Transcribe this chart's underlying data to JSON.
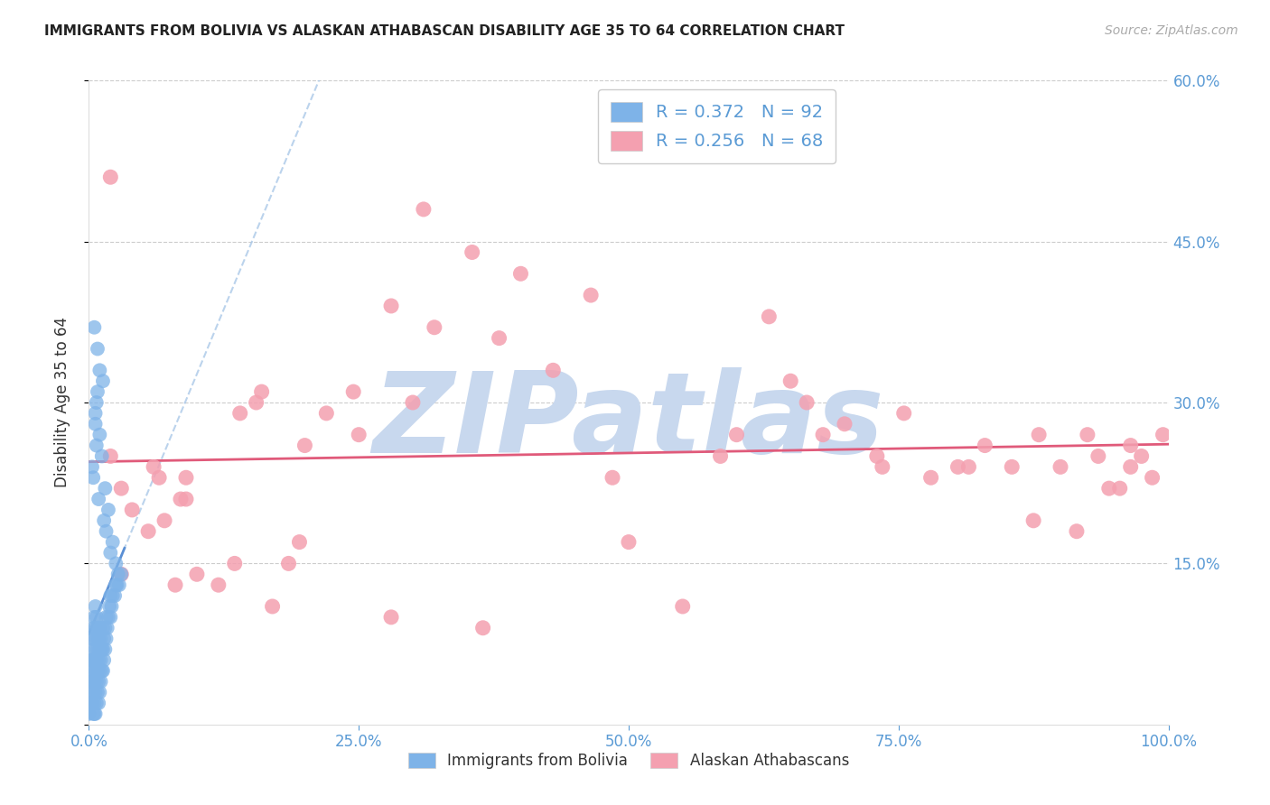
{
  "title": "IMMIGRANTS FROM BOLIVIA VS ALASKAN ATHABASCAN DISABILITY AGE 35 TO 64 CORRELATION CHART",
  "source": "Source: ZipAtlas.com",
  "ylabel": "Disability Age 35 to 64",
  "xlim": [
    0.0,
    1.0
  ],
  "ylim": [
    0.0,
    0.6
  ],
  "yticks": [
    0.0,
    0.15,
    0.3,
    0.45,
    0.6
  ],
  "ytick_labels": [
    "",
    "15.0%",
    "30.0%",
    "45.0%",
    "60.0%"
  ],
  "xticks": [
    0.0,
    0.25,
    0.5,
    0.75,
    1.0
  ],
  "xtick_labels": [
    "0.0%",
    "25.0%",
    "50.0%",
    "75.0%",
    "100.0%"
  ],
  "blue_color": "#7eb3e8",
  "pink_color": "#f4a0b0",
  "blue_reg_color": "#5a8fd4",
  "blue_dash_color": "#aac8e8",
  "pink_reg_color": "#e05a7a",
  "tick_color": "#5b9bd5",
  "watermark_color": "#c8d8ee",
  "watermark_text": "ZIPatlas",
  "legend_R_blue": "R = 0.372",
  "legend_N_blue": "N = 92",
  "legend_R_pink": "R = 0.256",
  "legend_N_pink": "N = 68",
  "legend_blue_label": "Immigrants from Bolivia",
  "legend_pink_label": "Alaskan Athabascans",
  "blue_N": 92,
  "pink_N": 68,
  "background_color": "#ffffff",
  "grid_color": "#cccccc",
  "blue_x_dense": [
    0.0,
    0.001,
    0.001,
    0.002,
    0.002,
    0.002,
    0.003,
    0.003,
    0.003,
    0.003,
    0.004,
    0.004,
    0.004,
    0.004,
    0.004,
    0.005,
    0.005,
    0.005,
    0.005,
    0.005,
    0.005,
    0.006,
    0.006,
    0.006,
    0.006,
    0.006,
    0.006,
    0.007,
    0.007,
    0.007,
    0.007,
    0.007,
    0.008,
    0.008,
    0.008,
    0.008,
    0.009,
    0.009,
    0.009,
    0.009,
    0.01,
    0.01,
    0.01,
    0.01,
    0.011,
    0.011,
    0.011,
    0.012,
    0.012,
    0.013,
    0.013,
    0.013,
    0.014,
    0.014,
    0.015,
    0.015,
    0.016,
    0.016,
    0.017,
    0.018,
    0.019,
    0.02,
    0.02,
    0.021,
    0.022,
    0.024,
    0.025,
    0.026,
    0.027,
    0.028,
    0.03
  ],
  "blue_y_dense": [
    0.01,
    0.02,
    0.03,
    0.04,
    0.05,
    0.06,
    0.02,
    0.04,
    0.06,
    0.08,
    0.01,
    0.03,
    0.05,
    0.07,
    0.09,
    0.01,
    0.02,
    0.04,
    0.06,
    0.08,
    0.1,
    0.01,
    0.03,
    0.05,
    0.07,
    0.09,
    0.11,
    0.02,
    0.04,
    0.06,
    0.08,
    0.1,
    0.03,
    0.05,
    0.07,
    0.09,
    0.02,
    0.04,
    0.06,
    0.08,
    0.03,
    0.05,
    0.07,
    0.09,
    0.04,
    0.06,
    0.08,
    0.05,
    0.07,
    0.05,
    0.07,
    0.09,
    0.06,
    0.08,
    0.07,
    0.09,
    0.08,
    0.1,
    0.09,
    0.1,
    0.11,
    0.1,
    0.12,
    0.11,
    0.12,
    0.12,
    0.13,
    0.13,
    0.14,
    0.13,
    0.14
  ],
  "blue_x_outliers": [
    0.005,
    0.007,
    0.008,
    0.01,
    0.012,
    0.015,
    0.018,
    0.022,
    0.01,
    0.006,
    0.003,
    0.007,
    0.004,
    0.009,
    0.014,
    0.02,
    0.006,
    0.008,
    0.016,
    0.025,
    0.013
  ],
  "blue_y_outliers": [
    0.37,
    0.3,
    0.35,
    0.27,
    0.25,
    0.22,
    0.2,
    0.17,
    0.33,
    0.28,
    0.24,
    0.26,
    0.23,
    0.21,
    0.19,
    0.16,
    0.29,
    0.31,
    0.18,
    0.15,
    0.32
  ],
  "pink_x": [
    0.02,
    0.03,
    0.04,
    0.055,
    0.06,
    0.07,
    0.085,
    0.09,
    0.1,
    0.12,
    0.14,
    0.155,
    0.16,
    0.17,
    0.185,
    0.2,
    0.22,
    0.245,
    0.25,
    0.28,
    0.3,
    0.32,
    0.355,
    0.38,
    0.4,
    0.43,
    0.465,
    0.5,
    0.55,
    0.6,
    0.65,
    0.68,
    0.7,
    0.73,
    0.755,
    0.78,
    0.805,
    0.83,
    0.855,
    0.88,
    0.9,
    0.925,
    0.935,
    0.955,
    0.965,
    0.975,
    0.985,
    0.995,
    0.03,
    0.065,
    0.09,
    0.135,
    0.195,
    0.28,
    0.365,
    0.485,
    0.585,
    0.665,
    0.735,
    0.815,
    0.875,
    0.915,
    0.945,
    0.965,
    0.02,
    0.08,
    0.31,
    0.63
  ],
  "pink_y": [
    0.25,
    0.22,
    0.2,
    0.18,
    0.24,
    0.19,
    0.21,
    0.23,
    0.14,
    0.13,
    0.29,
    0.3,
    0.31,
    0.11,
    0.15,
    0.26,
    0.29,
    0.31,
    0.27,
    0.39,
    0.3,
    0.37,
    0.44,
    0.36,
    0.42,
    0.33,
    0.4,
    0.17,
    0.11,
    0.27,
    0.32,
    0.27,
    0.28,
    0.25,
    0.29,
    0.23,
    0.24,
    0.26,
    0.24,
    0.27,
    0.24,
    0.27,
    0.25,
    0.22,
    0.24,
    0.25,
    0.23,
    0.27,
    0.14,
    0.23,
    0.21,
    0.15,
    0.17,
    0.1,
    0.09,
    0.23,
    0.25,
    0.3,
    0.24,
    0.24,
    0.19,
    0.18,
    0.22,
    0.26,
    0.51,
    0.13,
    0.48,
    0.38
  ]
}
